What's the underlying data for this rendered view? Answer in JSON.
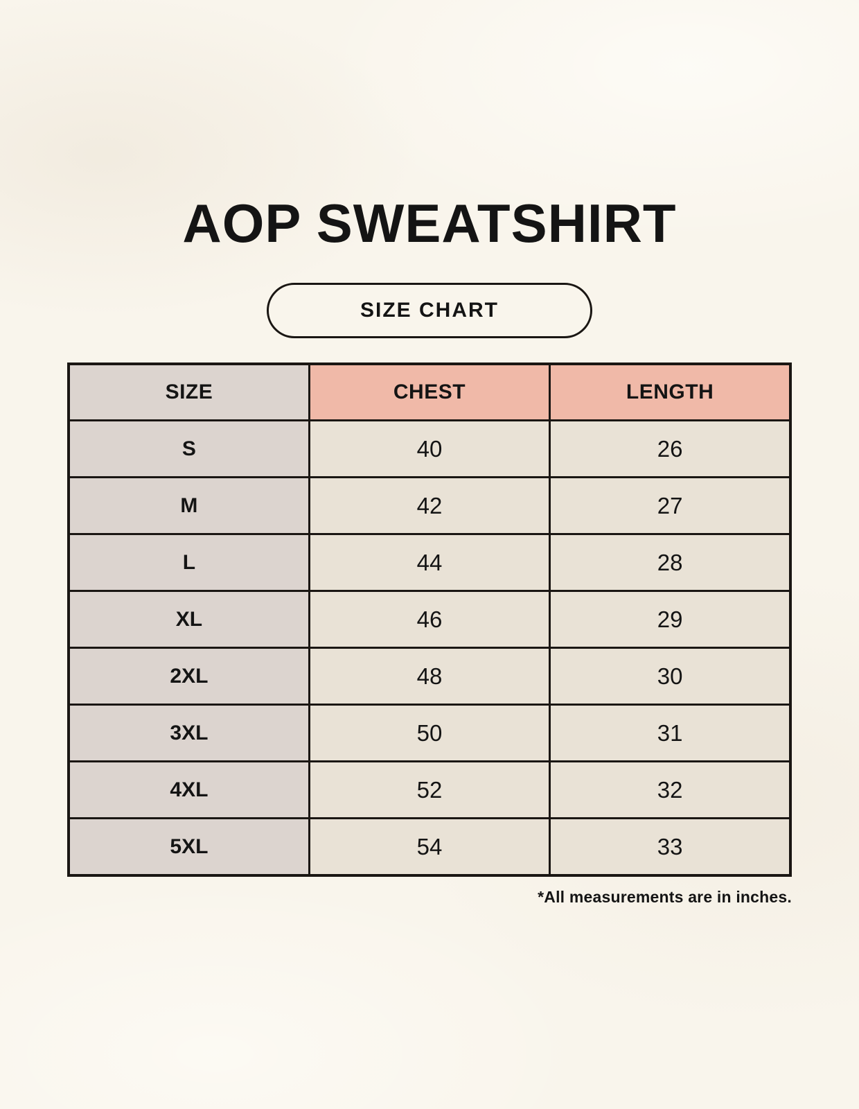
{
  "header": {
    "title": "AOP SWEATSHIRT",
    "badge_label": "SIZE CHART"
  },
  "chart_data": {
    "type": "table",
    "title": "AOP SWEATSHIRT SIZE CHART",
    "columns": [
      "SIZE",
      "CHEST",
      "LENGTH"
    ],
    "rows": [
      [
        "S",
        "40",
        "26"
      ],
      [
        "M",
        "42",
        "27"
      ],
      [
        "L",
        "44",
        "28"
      ],
      [
        "XL",
        "46",
        "29"
      ],
      [
        "2XL",
        "48",
        "30"
      ],
      [
        "3XL",
        "50",
        "31"
      ],
      [
        "4XL",
        "52",
        "32"
      ],
      [
        "5XL",
        "54",
        "33"
      ]
    ],
    "units": "inches"
  },
  "footer": {
    "note": "*All measurements are in inches."
  },
  "colors": {
    "background": "#f9f5ec",
    "size_column": "#dcd4cf",
    "accent_header": "#f0b9a8",
    "data_cell": "#e9e2d6",
    "border": "#1a1613",
    "text": "#141414"
  }
}
